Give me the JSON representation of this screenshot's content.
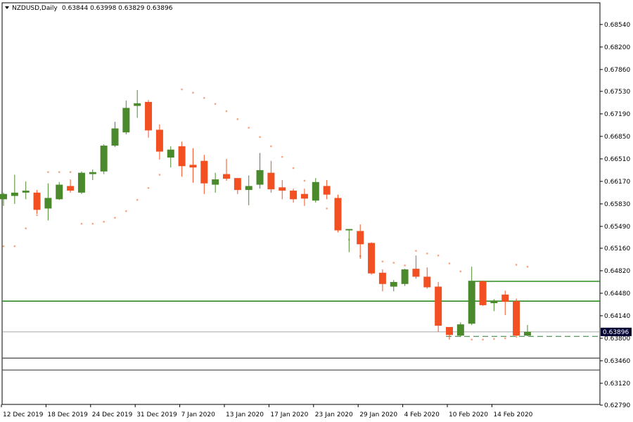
{
  "header": {
    "symbol": "NZDUSD,Daily",
    "ohlc": "0.63844 0.63998 0.63829 0.63896"
  },
  "colors": {
    "bull": "#4b8a2c",
    "bear": "#f25022",
    "sar": "#f4a582",
    "resistance": "#2e8b22",
    "support": "#555555",
    "price_line": "#888888",
    "dashed": "#2e7d32",
    "price_tag": "#000033"
  },
  "chart_data": {
    "type": "candlestick",
    "title": "NZDUSD,Daily",
    "ylim": [
      0.6279,
      0.6874
    ],
    "y_ticks": [
      "0.68540",
      "0.68200",
      "0.67860",
      "0.67530",
      "0.67190",
      "0.66850",
      "0.66510",
      "0.66170",
      "0.65830",
      "0.65490",
      "0.65160",
      "0.64820",
      "0.64480",
      "0.64140",
      "0.63800",
      "0.63460",
      "0.63120",
      "0.62790"
    ],
    "x_labels": [
      "12 Dec 2019",
      "18 Dec 2019",
      "24 Dec 2019",
      "31 Dec 2019",
      "7 Jan 2020",
      "13 Jan 2020",
      "17 Jan 2020",
      "23 Jan 2020",
      "29 Jan 2020",
      "4 Feb 2020",
      "10 Feb 2020",
      "14 Feb 2020"
    ],
    "x_label_index": [
      0,
      4,
      8,
      12,
      16,
      20,
      24,
      28,
      32,
      36,
      40,
      44
    ],
    "current_price": "0.63896",
    "candles": [
      {
        "o": 0.659,
        "h": 0.66,
        "l": 0.658,
        "c": 0.6598
      },
      {
        "o": 0.6595,
        "h": 0.6627,
        "l": 0.6583,
        "c": 0.66
      },
      {
        "o": 0.66,
        "h": 0.6617,
        "l": 0.659,
        "c": 0.6603
      },
      {
        "o": 0.66,
        "h": 0.6604,
        "l": 0.6568,
        "c": 0.6574
      },
      {
        "o": 0.6576,
        "h": 0.6614,
        "l": 0.6558,
        "c": 0.6592
      },
      {
        "o": 0.659,
        "h": 0.6616,
        "l": 0.6589,
        "c": 0.6612
      },
      {
        "o": 0.661,
        "h": 0.662,
        "l": 0.66,
        "c": 0.6603
      },
      {
        "o": 0.66,
        "h": 0.6632,
        "l": 0.6598,
        "c": 0.663
      },
      {
        "o": 0.6628,
        "h": 0.6635,
        "l": 0.6619,
        "c": 0.6631
      },
      {
        "o": 0.6632,
        "h": 0.6673,
        "l": 0.6628,
        "c": 0.6671
      },
      {
        "o": 0.6671,
        "h": 0.6707,
        "l": 0.6669,
        "c": 0.6697
      },
      {
        "o": 0.6691,
        "h": 0.6739,
        "l": 0.6688,
        "c": 0.6728
      },
      {
        "o": 0.6731,
        "h": 0.6755,
        "l": 0.6713,
        "c": 0.6735
      },
      {
        "o": 0.6737,
        "h": 0.674,
        "l": 0.6683,
        "c": 0.6694
      },
      {
        "o": 0.6695,
        "h": 0.6703,
        "l": 0.665,
        "c": 0.6662
      },
      {
        "o": 0.6653,
        "h": 0.667,
        "l": 0.6638,
        "c": 0.6665
      },
      {
        "o": 0.667,
        "h": 0.6677,
        "l": 0.6624,
        "c": 0.664
      },
      {
        "o": 0.6642,
        "h": 0.6667,
        "l": 0.6615,
        "c": 0.6638
      },
      {
        "o": 0.6648,
        "h": 0.6657,
        "l": 0.6598,
        "c": 0.6614
      },
      {
        "o": 0.6612,
        "h": 0.663,
        "l": 0.66,
        "c": 0.662
      },
      {
        "o": 0.6628,
        "h": 0.6651,
        "l": 0.6618,
        "c": 0.6621
      },
      {
        "o": 0.6622,
        "h": 0.6622,
        "l": 0.6598,
        "c": 0.6604
      },
      {
        "o": 0.6604,
        "h": 0.6626,
        "l": 0.6581,
        "c": 0.661
      },
      {
        "o": 0.6612,
        "h": 0.666,
        "l": 0.6606,
        "c": 0.6634
      },
      {
        "o": 0.663,
        "h": 0.6648,
        "l": 0.66,
        "c": 0.6605
      },
      {
        "o": 0.6608,
        "h": 0.6619,
        "l": 0.659,
        "c": 0.6603
      },
      {
        "o": 0.6603,
        "h": 0.6606,
        "l": 0.6585,
        "c": 0.659
      },
      {
        "o": 0.6598,
        "h": 0.6606,
        "l": 0.658,
        "c": 0.6591
      },
      {
        "o": 0.6588,
        "h": 0.6622,
        "l": 0.6585,
        "c": 0.6616
      },
      {
        "o": 0.661,
        "h": 0.6619,
        "l": 0.659,
        "c": 0.6597
      },
      {
        "o": 0.6592,
        "h": 0.6597,
        "l": 0.654,
        "c": 0.6543
      },
      {
        "o": 0.6543,
        "h": 0.6545,
        "l": 0.651,
        "c": 0.6545
      },
      {
        "o": 0.6542,
        "h": 0.6552,
        "l": 0.65,
        "c": 0.6522
      },
      {
        "o": 0.6524,
        "h": 0.6525,
        "l": 0.6476,
        "c": 0.6478
      },
      {
        "o": 0.6479,
        "h": 0.6484,
        "l": 0.6451,
        "c": 0.6462
      },
      {
        "o": 0.6458,
        "h": 0.6468,
        "l": 0.6451,
        "c": 0.6465
      },
      {
        "o": 0.6462,
        "h": 0.6485,
        "l": 0.6459,
        "c": 0.6484
      },
      {
        "o": 0.6485,
        "h": 0.6505,
        "l": 0.647,
        "c": 0.6473
      },
      {
        "o": 0.6473,
        "h": 0.6487,
        "l": 0.6455,
        "c": 0.6457
      },
      {
        "o": 0.6458,
        "h": 0.6465,
        "l": 0.639,
        "c": 0.6399
      },
      {
        "o": 0.6397,
        "h": 0.6397,
        "l": 0.6378,
        "c": 0.6385
      },
      {
        "o": 0.6384,
        "h": 0.6404,
        "l": 0.6382,
        "c": 0.6401
      },
      {
        "o": 0.6402,
        "h": 0.6488,
        "l": 0.64,
        "c": 0.6466
      },
      {
        "o": 0.6466,
        "h": 0.6467,
        "l": 0.6429,
        "c": 0.643
      },
      {
        "o": 0.6433,
        "h": 0.6439,
        "l": 0.6421,
        "c": 0.6437
      },
      {
        "o": 0.6446,
        "h": 0.6452,
        "l": 0.6415,
        "c": 0.6435
      },
      {
        "o": 0.6436,
        "h": 0.644,
        "l": 0.6381,
        "c": 0.6384
      },
      {
        "o": 0.6384,
        "h": 0.64,
        "l": 0.6383,
        "c": 0.639
      }
    ],
    "sar": [
      {
        "i": 0,
        "v": 0.6519
      },
      {
        "i": 1,
        "v": 0.6519
      },
      {
        "i": 2,
        "v": 0.6546
      },
      {
        "i": 3,
        "v": 0.6566
      },
      {
        "i": 4,
        "v": 0.6631
      },
      {
        "i": 5,
        "v": 0.6631
      },
      {
        "i": 6,
        "v": 0.6631
      },
      {
        "i": 7,
        "v": 0.6553
      },
      {
        "i": 8,
        "v": 0.6553
      },
      {
        "i": 9,
        "v": 0.6556
      },
      {
        "i": 10,
        "v": 0.6562
      },
      {
        "i": 11,
        "v": 0.6572
      },
      {
        "i": 12,
        "v": 0.6589
      },
      {
        "i": 13,
        "v": 0.6607
      },
      {
        "i": 14,
        "v": 0.6627
      },
      {
        "i": 16,
        "v": 0.6756
      },
      {
        "i": 17,
        "v": 0.6751
      },
      {
        "i": 18,
        "v": 0.6743
      },
      {
        "i": 19,
        "v": 0.6734
      },
      {
        "i": 20,
        "v": 0.6723
      },
      {
        "i": 21,
        "v": 0.6711
      },
      {
        "i": 22,
        "v": 0.6698
      },
      {
        "i": 23,
        "v": 0.6684
      },
      {
        "i": 24,
        "v": 0.667
      },
      {
        "i": 25,
        "v": 0.6654
      },
      {
        "i": 26,
        "v": 0.6637
      },
      {
        "i": 27,
        "v": 0.6618
      },
      {
        "i": 28,
        "v": 0.6598
      },
      {
        "i": 29,
        "v": 0.6576
      },
      {
        "i": 30,
        "v": 0.6553
      },
      {
        "i": 31,
        "v": 0.6529
      },
      {
        "i": 32,
        "v": 0.6504
      },
      {
        "i": 33,
        "v": 0.6499
      },
      {
        "i": 34,
        "v": 0.6496
      },
      {
        "i": 35,
        "v": 0.6494
      },
      {
        "i": 36,
        "v": 0.649
      },
      {
        "i": 37,
        "v": 0.6512
      },
      {
        "i": 38,
        "v": 0.6508
      },
      {
        "i": 39,
        "v": 0.6505
      },
      {
        "i": 40,
        "v": 0.6493
      },
      {
        "i": 41,
        "v": 0.6481
      },
      {
        "i": 42,
        "v": 0.6378
      },
      {
        "i": 43,
        "v": 0.6378
      },
      {
        "i": 44,
        "v": 0.6379
      },
      {
        "i": 45,
        "v": 0.638
      },
      {
        "i": 46,
        "v": 0.6491
      },
      {
        "i": 47,
        "v": 0.6488
      }
    ],
    "horizontal_lines": [
      {
        "name": "resistance-upper",
        "value": 0.6466,
        "start_index": 42
      },
      {
        "name": "resistance",
        "value": 0.6436,
        "start_index": 0
      },
      {
        "name": "support-1",
        "value": 0.635,
        "start_index": 0
      },
      {
        "name": "support-2",
        "value": 0.6332,
        "start_index": 0
      }
    ],
    "dashed_line": {
      "value": 0.63829,
      "start_index": 40
    },
    "grid": false
  }
}
